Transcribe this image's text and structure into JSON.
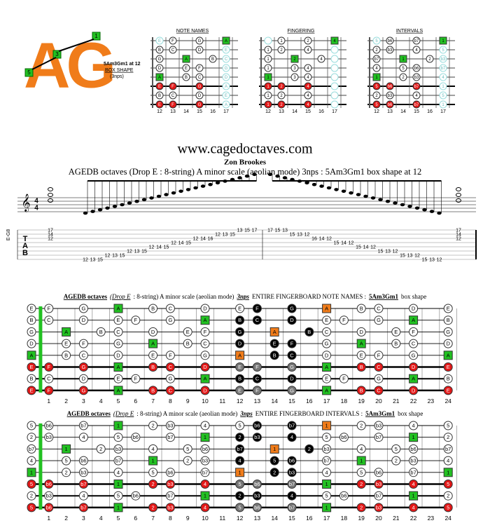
{
  "logo": {
    "letters": "AG",
    "markers": [
      "1",
      "3",
      "5"
    ],
    "caption": [
      "5Am3Gm1 at 12",
      "BOX SHAPE",
      "(3nps)"
    ]
  },
  "diagrams": [
    {
      "title": "NOTE NAMES"
    },
    {
      "title": "FINGERING"
    },
    {
      "title": "INTERVALS"
    }
  ],
  "diagram_frets": [
    12,
    13,
    14,
    15,
    16,
    17
  ],
  "site": "www.cagedoctaves.com",
  "author": "Zon Brookes",
  "subtitle": "AGEDB octaves (Drop E : 8-string) A minor scale (aeolian mode) 3nps : 5Am3Gm1 box shape at 12",
  "tab": {
    "letters": [
      "T",
      "A",
      "B"
    ],
    "side_label": "E-G8",
    "time_signature": [
      "4",
      "4"
    ],
    "chord": [
      "17",
      "14",
      "12"
    ],
    "run": [
      {
        "string": 7,
        "frets": [
          "12",
          "13",
          "15"
        ]
      },
      {
        "string": 6,
        "frets": [
          "12",
          "13",
          "15"
        ]
      },
      {
        "string": 5,
        "frets": [
          "12",
          "13",
          "15"
        ]
      },
      {
        "string": 4,
        "frets": [
          "12",
          "14",
          "15"
        ]
      },
      {
        "string": 3,
        "frets": [
          "12",
          "14",
          "15"
        ]
      },
      {
        "string": 2,
        "frets": [
          "12",
          "14",
          "16"
        ]
      },
      {
        "string": 1,
        "frets": [
          "12",
          "13",
          "15"
        ]
      },
      {
        "string": 0,
        "frets": [
          "13",
          "15",
          "17"
        ]
      }
    ]
  },
  "highlight_strings": [
    5,
    7
  ],
  "box": [
    {
      "frets": [
        13,
        15,
        17
      ],
      "fingers": [
        "1",
        "2",
        "4"
      ]
    },
    {
      "frets": [
        12,
        13,
        15
      ],
      "fingers": [
        "1",
        "2",
        "4"
      ]
    },
    {
      "frets": [
        12,
        14,
        16
      ],
      "fingers": [
        "1",
        "2",
        "4"
      ]
    },
    {
      "frets": [
        12,
        14,
        15
      ],
      "fingers": [
        "1",
        "3",
        "4"
      ]
    },
    {
      "frets": [
        12,
        14,
        15
      ],
      "fingers": [
        "1",
        "3",
        "4"
      ]
    },
    {
      "frets": [
        12,
        13,
        15
      ],
      "fingers": [
        "1",
        "2",
        "4"
      ]
    },
    {
      "frets": [
        12,
        13,
        15
      ],
      "fingers": [
        "1",
        "2",
        "4"
      ]
    },
    {
      "frets": [
        12,
        13,
        15
      ],
      "fingers": [
        "1",
        "2",
        "4"
      ]
    }
  ],
  "fret_numbers": [
    1,
    2,
    3,
    4,
    5,
    6,
    7,
    8,
    9,
    10,
    11,
    12,
    13,
    14,
    15,
    16,
    17,
    18,
    19,
    20,
    21,
    22,
    23,
    24
  ],
  "boards": [
    {
      "title_parts": [
        {
          "text": "AGEDB octaves",
          "style": "bold"
        },
        {
          "text": "(Drop E",
          "style": "italic"
        },
        {
          "text": ": 8-string) A minor scale (aeolian mode)",
          "style": "normal"
        },
        {
          "text": "3nps",
          "style": "bolditalic"
        },
        {
          "text": "ENTIRE FINGERBOARD NOTE NAMES :",
          "style": "normal"
        },
        {
          "text": "5Am3Gm1",
          "style": "bold"
        },
        {
          "text": "box shape",
          "style": "normal"
        }
      ],
      "rows": [
        [
          "E",
          "F",
          null,
          "G",
          null,
          "A",
          null,
          "B",
          "C",
          null,
          "D",
          null,
          "E",
          "F",
          null,
          "G",
          null,
          "A",
          null,
          "B",
          "C",
          null,
          "D",
          null,
          "E"
        ],
        [
          "B",
          "C",
          null,
          "D",
          null,
          "E",
          "F",
          null,
          "G",
          null,
          "A",
          null,
          "B",
          "C",
          null,
          "D",
          null,
          "E",
          "F",
          null,
          "G",
          null,
          "A",
          null,
          "B"
        ],
        [
          "G",
          null,
          "A",
          null,
          "B",
          "C",
          null,
          "D",
          null,
          "E",
          "F",
          null,
          "G",
          null,
          "A",
          null,
          "B",
          "C",
          null,
          "D",
          null,
          "E",
          "F",
          null,
          "G"
        ],
        [
          "D",
          null,
          "E",
          "F",
          null,
          "G",
          null,
          "A",
          null,
          "B",
          "C",
          null,
          "D",
          null,
          "E",
          "F",
          null,
          "G",
          null,
          "A",
          null,
          "B",
          "C",
          null,
          "D"
        ],
        [
          "A",
          null,
          "B",
          "C",
          null,
          "D",
          null,
          "E",
          "F",
          null,
          "G",
          null,
          "A",
          null,
          "B",
          "C",
          null,
          "D",
          null,
          "E",
          "F",
          null,
          "G",
          null,
          "A"
        ],
        [
          "E",
          "F",
          null,
          "G",
          null,
          "A",
          null,
          "B",
          "C",
          null,
          "D",
          null,
          "E",
          "F",
          null,
          "G",
          null,
          "A",
          null,
          "B",
          "C",
          null,
          "D",
          null,
          "E"
        ],
        [
          "B",
          "C",
          null,
          "D",
          null,
          "E",
          "F",
          null,
          "G",
          null,
          "A",
          null,
          "B",
          "C",
          null,
          "D",
          null,
          "E",
          "F",
          null,
          "G",
          null,
          "A",
          null,
          "B"
        ],
        [
          "E",
          "F",
          null,
          "G",
          null,
          "A",
          null,
          "B",
          "C",
          null,
          "D",
          null,
          "E",
          "F",
          null,
          "G",
          null,
          "A",
          null,
          "B",
          "C",
          null,
          "D",
          null,
          "E"
        ]
      ]
    },
    {
      "title_parts": [
        {
          "text": "AGEDB octaves",
          "style": "bold"
        },
        {
          "text": "(Drop E",
          "style": "italic"
        },
        {
          "text": ": 8-string) A minor scale (aeolian mode)",
          "style": "normal"
        },
        {
          "text": "3nps",
          "style": "bolditalic"
        },
        {
          "text": "ENTIRE FINGERBOARD INTERVALS :",
          "style": "normal"
        },
        {
          "text": "5Am3Gm1",
          "style": "bold"
        },
        {
          "text": "box shape",
          "style": "normal"
        }
      ],
      "rows": [
        [
          "5",
          "b6",
          null,
          "b7",
          null,
          "1",
          null,
          "2",
          "b3",
          null,
          "4",
          null,
          "5",
          "b6",
          null,
          "b7",
          null,
          "1",
          null,
          "2",
          "b3",
          null,
          "4",
          null,
          "5"
        ],
        [
          "2",
          "b3",
          null,
          "4",
          null,
          "5",
          "b6",
          null,
          "b7",
          null,
          "1",
          null,
          "2",
          "b3",
          null,
          "4",
          null,
          "5",
          "b6",
          null,
          "b7",
          null,
          "1",
          null,
          "2"
        ],
        [
          "b7",
          null,
          "1",
          null,
          "2",
          "b3",
          null,
          "4",
          null,
          "5",
          "b6",
          null,
          "b7",
          null,
          "1",
          null,
          "2",
          "b3",
          null,
          "4",
          null,
          "5",
          "b6",
          null,
          "b7"
        ],
        [
          "4",
          null,
          "5",
          "b6",
          null,
          "b7",
          null,
          "1",
          null,
          "2",
          "b3",
          null,
          "4",
          null,
          "5",
          "b6",
          null,
          "b7",
          null,
          "1",
          null,
          "2",
          "b3",
          null,
          "4"
        ],
        [
          "1",
          null,
          "2",
          "b3",
          null,
          "4",
          null,
          "5",
          "b6",
          null,
          "b7",
          null,
          "1",
          null,
          "2",
          "b3",
          null,
          "4",
          null,
          "5",
          "b6",
          null,
          "b7",
          null,
          "1"
        ],
        [
          "5",
          "b6",
          null,
          "b7",
          null,
          "1",
          null,
          "2",
          "b3",
          null,
          "4",
          null,
          "5",
          "b6",
          null,
          "b7",
          null,
          "1",
          null,
          "2",
          "b3",
          null,
          "4",
          null,
          "5"
        ],
        [
          "2",
          "b3",
          null,
          "4",
          null,
          "5",
          "b6",
          null,
          "b7",
          null,
          "1",
          null,
          "2",
          "b3",
          null,
          "4",
          null,
          "5",
          "b6",
          null,
          "b7",
          null,
          "1",
          null,
          "2"
        ],
        [
          "5",
          "b6",
          null,
          "b7",
          null,
          "1",
          null,
          "2",
          "b3",
          null,
          "4",
          null,
          "5",
          "b6",
          null,
          "b7",
          null,
          "1",
          null,
          "2",
          "b3",
          null,
          "4",
          null,
          "5"
        ]
      ]
    }
  ]
}
